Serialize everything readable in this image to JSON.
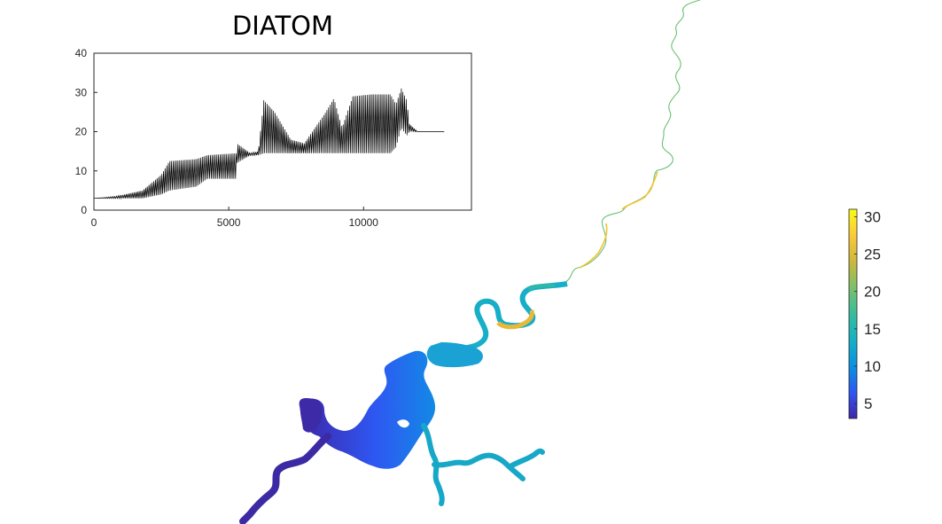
{
  "chart_data": [
    {
      "type": "line",
      "title": "DIATOM",
      "xlabel": "",
      "ylabel": "",
      "xlim": [
        0,
        14000
      ],
      "ylim": [
        0,
        40
      ],
      "x_ticks": [
        "0",
        "5000",
        "10000"
      ],
      "y_ticks": [
        "0",
        "10",
        "20",
        "30",
        "40"
      ],
      "grid": false,
      "series": [
        {
          "color": "#000000",
          "envelope": [
            {
              "x": 0,
              "lo": 3,
              "hi": 3
            },
            {
              "x": 800,
              "lo": 3,
              "hi": 3.5
            },
            {
              "x": 1800,
              "lo": 3,
              "hi": 5
            },
            {
              "x": 2500,
              "lo": 4,
              "hi": 9
            },
            {
              "x": 2800,
              "lo": 5,
              "hi": 12.5
            },
            {
              "x": 3800,
              "lo": 6,
              "hi": 13
            },
            {
              "x": 4200,
              "lo": 8,
              "hi": 14
            },
            {
              "x": 5300,
              "lo": 8,
              "hi": 14.5
            },
            {
              "x": 5300,
              "lo": 12,
              "hi": 17
            },
            {
              "x": 5800,
              "lo": 14,
              "hi": 14.5
            },
            {
              "x": 6100,
              "lo": 14,
              "hi": 15
            },
            {
              "x": 6300,
              "lo": 14.5,
              "hi": 28
            },
            {
              "x": 6700,
              "lo": 14.5,
              "hi": 25
            },
            {
              "x": 7300,
              "lo": 14.5,
              "hi": 18
            },
            {
              "x": 7800,
              "lo": 14.5,
              "hi": 17
            },
            {
              "x": 8600,
              "lo": 14.5,
              "hi": 25
            },
            {
              "x": 8900,
              "lo": 14.5,
              "hi": 28.5
            },
            {
              "x": 9200,
              "lo": 14.5,
              "hi": 21
            },
            {
              "x": 9600,
              "lo": 14.5,
              "hi": 29
            },
            {
              "x": 10300,
              "lo": 14.5,
              "hi": 29.5
            },
            {
              "x": 11000,
              "lo": 14.5,
              "hi": 29.5
            },
            {
              "x": 11200,
              "lo": 16,
              "hi": 27
            },
            {
              "x": 11400,
              "lo": 21,
              "hi": 31
            },
            {
              "x": 11600,
              "lo": 19,
              "hi": 28
            },
            {
              "x": 11700,
              "lo": 20,
              "hi": 22
            },
            {
              "x": 12000,
              "lo": 20,
              "hi": 20
            },
            {
              "x": 13000,
              "lo": 20,
              "hi": 20
            }
          ]
        }
      ]
    },
    {
      "type": "heatmap",
      "title": "",
      "colorbar": {
        "min": 3,
        "max": 31,
        "ticks": [
          "5",
          "10",
          "15",
          "20",
          "25",
          "30"
        ],
        "colormap": [
          "#3e26a8",
          "#2e57f2",
          "#0c90e0",
          "#17b0c4",
          "#37bd9c",
          "#7dbf6c",
          "#ccb83b",
          "#fbc93a",
          "#f9fb15"
        ]
      },
      "river": [
        {
          "seg": "main",
          "v": 3
        },
        {
          "seg": "main",
          "v": 8
        },
        {
          "seg": "main",
          "v": 13
        },
        {
          "seg": "main",
          "v": 26
        },
        {
          "seg": "main",
          "v": 18
        },
        {
          "seg": "main",
          "v": 28
        },
        {
          "seg": "main",
          "v": 20
        }
      ]
    }
  ]
}
